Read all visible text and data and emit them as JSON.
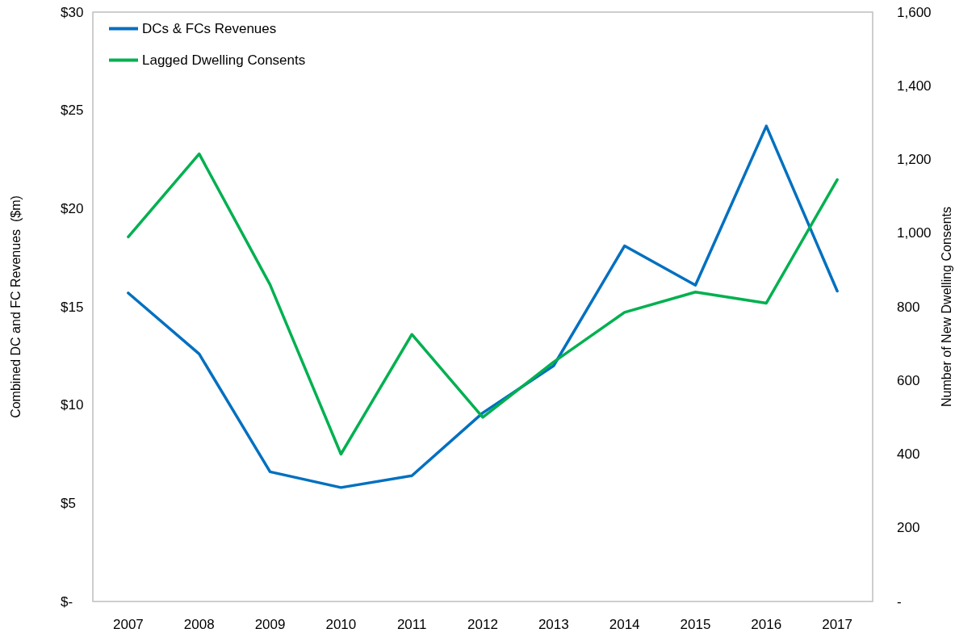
{
  "chart_data": {
    "type": "line",
    "ylabel": "Combined DC and FC Revenues  ($m)",
    "y2label": "Number of New Dwelling Consents",
    "categories": [
      "2007",
      "2008",
      "2009",
      "2010",
      "2011",
      "2012",
      "2013",
      "2014",
      "2015",
      "2016",
      "2017"
    ],
    "series": [
      {
        "name": "DCs & FCs Revenues",
        "color": "#0070c0",
        "values": [
          15.7,
          12.6,
          6.6,
          5.8,
          6.4,
          9.6,
          12.0,
          18.1,
          16.1,
          24.2,
          15.8
        ]
      },
      {
        "name": "Lagged Dwelling Consents",
        "color": "#00b050",
        "axis": "y2",
        "values": [
          990,
          1215,
          860,
          400,
          725,
          500,
          650,
          785,
          840,
          810,
          1145
        ]
      }
    ],
    "ylim": [
      0,
      30
    ],
    "yticks": [
      {
        "value": 0,
        "label": "$-"
      },
      {
        "value": 5,
        "label": "$5"
      },
      {
        "value": 10,
        "label": "$10"
      },
      {
        "value": 15,
        "label": "$15"
      },
      {
        "value": 20,
        "label": "$20"
      },
      {
        "value": 25,
        "label": "$25"
      },
      {
        "value": 30,
        "label": "$30"
      }
    ],
    "y2lim": [
      0,
      1600
    ],
    "y2ticks": [
      {
        "value": 0,
        "label": "-"
      },
      {
        "value": 200,
        "label": "200"
      },
      {
        "value": 400,
        "label": "400"
      },
      {
        "value": 600,
        "label": "600"
      },
      {
        "value": 800,
        "label": "800"
      },
      {
        "value": 1000,
        "label": "1,000"
      },
      {
        "value": 1200,
        "label": "1,200"
      },
      {
        "value": 1400,
        "label": "1,400"
      },
      {
        "value": 1600,
        "label": "1,600"
      }
    ],
    "grid": false,
    "legend": "top left",
    "marker": "none",
    "line_style": "solid"
  }
}
